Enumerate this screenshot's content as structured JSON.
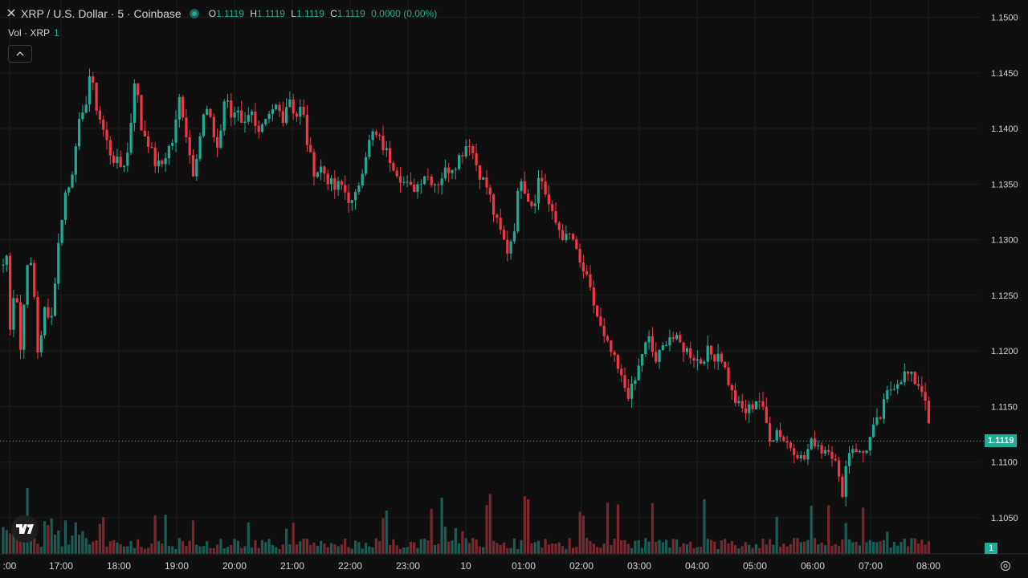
{
  "legend": {
    "symbol": "XRP / U.S. Dollar · 5 · Coinbase",
    "ohlc": [
      {
        "k": "O",
        "v": "1.1119"
      },
      {
        "k": "H",
        "v": "1.1119"
      },
      {
        "k": "L",
        "v": "1.1119"
      },
      {
        "k": "C",
        "v": "1.1119"
      }
    ],
    "change": "0.0000 (0.00%)"
  },
  "volume_legend": {
    "label": "Vol · XRP",
    "value": "1"
  },
  "last_price": "1.1119",
  "last_volume": "1",
  "colors": {
    "up": "#22ab94",
    "down": "#f23645",
    "bg": "#0f0f0f",
    "grid": "#1e1e1e",
    "text": "#d1d4dc"
  },
  "chart_data": {
    "type": "candlestick",
    "y_ticks": [
      "1.1500",
      "1.1450",
      "1.1400",
      "1.1350",
      "1.1300",
      "1.1250",
      "1.1200",
      "1.1150",
      "1.1100",
      "1.1050"
    ],
    "y_range": [
      1.1025,
      1.151
    ],
    "x_ticks": [
      ":00",
      "17:00",
      "18:00",
      "19:00",
      "20:00",
      "21:00",
      "22:00",
      "23:00",
      "10",
      "01:00",
      "02:00",
      "03:00",
      "04:00",
      "05:00",
      "06:00",
      "07:00",
      "08:00"
    ],
    "anchor_points": [
      [
        0,
        1.1265
      ],
      [
        8,
        1.129
      ],
      [
        12,
        1.122
      ],
      [
        20,
        1.127
      ],
      [
        24,
        1.1185
      ],
      [
        32,
        1.127
      ],
      [
        40,
        1.128
      ],
      [
        48,
        1.119
      ],
      [
        56,
        1.124
      ],
      [
        64,
        1.123
      ],
      [
        72,
        1.129
      ],
      [
        80,
        1.134
      ],
      [
        88,
        1.135
      ],
      [
        96,
        1.14
      ],
      [
        104,
        1.141
      ],
      [
        112,
        1.145
      ],
      [
        120,
        1.142
      ],
      [
        128,
        1.14
      ],
      [
        136,
        1.138
      ],
      [
        144,
        1.137
      ],
      [
        152,
        1.1365
      ],
      [
        160,
        1.138
      ],
      [
        168,
        1.145
      ],
      [
        176,
        1.14
      ],
      [
        184,
        1.139
      ],
      [
        192,
        1.137
      ],
      [
        200,
        1.1365
      ],
      [
        208,
        1.138
      ],
      [
        216,
        1.139
      ],
      [
        224,
        1.143
      ],
      [
        232,
        1.1395
      ],
      [
        240,
        1.136
      ],
      [
        248,
        1.139
      ],
      [
        256,
        1.142
      ],
      [
        264,
        1.14
      ],
      [
        272,
        1.138
      ],
      [
        280,
        1.143
      ],
      [
        288,
        1.141
      ],
      [
        296,
        1.142
      ],
      [
        304,
        1.14
      ],
      [
        312,
        1.1425
      ],
      [
        320,
        1.139
      ],
      [
        328,
        1.14
      ],
      [
        336,
        1.141
      ],
      [
        344,
        1.142
      ],
      [
        352,
        1.141
      ],
      [
        360,
        1.143
      ],
      [
        368,
        1.141
      ],
      [
        376,
        1.142
      ],
      [
        384,
        1.138
      ],
      [
        392,
        1.136
      ],
      [
        400,
        1.1365
      ],
      [
        408,
        1.1355
      ],
      [
        416,
        1.1345
      ],
      [
        424,
        1.135
      ],
      [
        432,
        1.134
      ],
      [
        440,
        1.133
      ],
      [
        448,
        1.1355
      ],
      [
        456,
        1.138
      ],
      [
        464,
        1.1395
      ],
      [
        472,
        1.139
      ],
      [
        480,
        1.138
      ],
      [
        488,
        1.137
      ],
      [
        496,
        1.136
      ],
      [
        504,
        1.135
      ],
      [
        512,
        1.1345
      ],
      [
        520,
        1.135
      ],
      [
        528,
        1.136
      ],
      [
        536,
        1.1355
      ],
      [
        544,
        1.135
      ],
      [
        552,
        1.136
      ],
      [
        560,
        1.1365
      ],
      [
        568,
        1.137
      ],
      [
        576,
        1.138
      ],
      [
        584,
        1.139
      ],
      [
        592,
        1.137
      ],
      [
        600,
        1.1355
      ],
      [
        608,
        1.1345
      ],
      [
        616,
        1.132
      ],
      [
        624,
        1.1305
      ],
      [
        632,
        1.129
      ],
      [
        640,
        1.131
      ],
      [
        648,
        1.136
      ],
      [
        656,
        1.134
      ],
      [
        664,
        1.133
      ],
      [
        672,
        1.136
      ],
      [
        680,
        1.134
      ],
      [
        688,
        1.132
      ],
      [
        696,
        1.131
      ],
      [
        704,
        1.13
      ],
      [
        712,
        1.1305
      ],
      [
        720,
        1.128
      ],
      [
        728,
        1.127
      ],
      [
        736,
        1.125
      ],
      [
        744,
        1.123
      ],
      [
        752,
        1.121
      ],
      [
        760,
        1.12
      ],
      [
        768,
        1.1185
      ],
      [
        776,
        1.117
      ],
      [
        784,
        1.116
      ],
      [
        792,
        1.1175
      ],
      [
        800,
        1.12
      ],
      [
        808,
        1.121
      ],
      [
        816,
        1.119
      ],
      [
        824,
        1.12
      ],
      [
        832,
        1.1215
      ],
      [
        840,
        1.121
      ],
      [
        848,
        1.1205
      ],
      [
        856,
        1.12
      ],
      [
        864,
        1.1195
      ],
      [
        872,
        1.119
      ],
      [
        880,
        1.12
      ],
      [
        888,
        1.1195
      ],
      [
        896,
        1.12
      ],
      [
        904,
        1.118
      ],
      [
        912,
        1.116
      ],
      [
        920,
        1.115
      ],
      [
        928,
        1.1145
      ],
      [
        936,
        1.115
      ],
      [
        944,
        1.116
      ],
      [
        952,
        1.114
      ],
      [
        960,
        1.112
      ],
      [
        968,
        1.113
      ],
      [
        976,
        1.112
      ],
      [
        984,
        1.1115
      ],
      [
        992,
        1.111
      ],
      [
        1000,
        1.11
      ],
      [
        1008,
        1.1115
      ],
      [
        1016,
        1.112
      ],
      [
        1024,
        1.111
      ],
      [
        1032,
        1.1115
      ],
      [
        1040,
        1.11
      ],
      [
        1048,
        1.107
      ],
      [
        1056,
        1.111
      ],
      [
        1064,
        1.1115
      ],
      [
        1072,
        1.1105
      ],
      [
        1080,
        1.1115
      ],
      [
        1088,
        1.113
      ],
      [
        1096,
        1.114
      ],
      [
        1104,
        1.116
      ],
      [
        1112,
        1.117
      ],
      [
        1120,
        1.1175
      ],
      [
        1128,
        1.118
      ],
      [
        1136,
        1.1175
      ],
      [
        1144,
        1.117
      ],
      [
        1152,
        1.116
      ],
      [
        1158,
        1.1119
      ]
    ],
    "candle_spacing_px": 4.3,
    "last_price": 1.1119
  }
}
